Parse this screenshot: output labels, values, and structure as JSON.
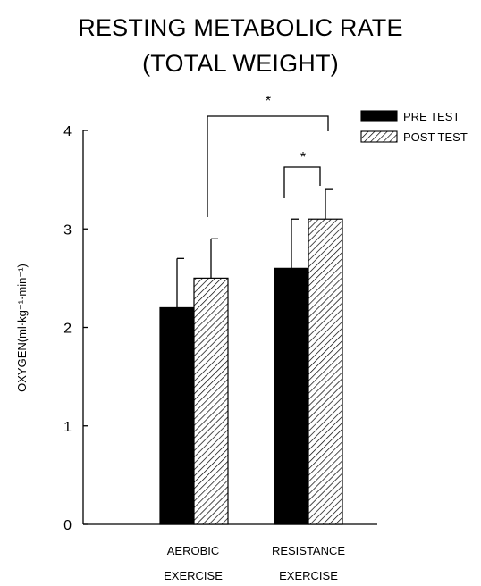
{
  "chart_data": {
    "type": "bar",
    "title_lines": [
      "RESTING METABOLIC RATE",
      "(TOTAL WEIGHT)"
    ],
    "ylabel": "OXYGEN(ml·kg⁻¹·min⁻¹)",
    "ylim": [
      0,
      4
    ],
    "yticks": [
      "0",
      "1",
      "2",
      "3",
      "4"
    ],
    "categories": [
      {
        "lines": [
          "AEROBIC",
          "EXERCISE"
        ]
      },
      {
        "lines": [
          "RESISTANCE",
          "EXERCISE"
        ]
      }
    ],
    "series": [
      {
        "name": "PRE TEST",
        "values": [
          2.2,
          2.6
        ],
        "errors": [
          0.5,
          0.5
        ],
        "fill": "solid",
        "color": "#000000"
      },
      {
        "name": "POST TEST",
        "values": [
          2.5,
          3.1
        ],
        "errors": [
          0.4,
          0.3
        ],
        "fill": "hatched",
        "color": "#000000"
      }
    ],
    "legend_position": "top-right",
    "significance": [
      {
        "label": "*",
        "between": "AEROBIC EXERCISE vs RESISTANCE EXERCISE (POST TEST)"
      },
      {
        "label": "*",
        "between": "RESISTANCE EXERCISE PRE TEST vs POST TEST"
      }
    ],
    "grid": false
  }
}
